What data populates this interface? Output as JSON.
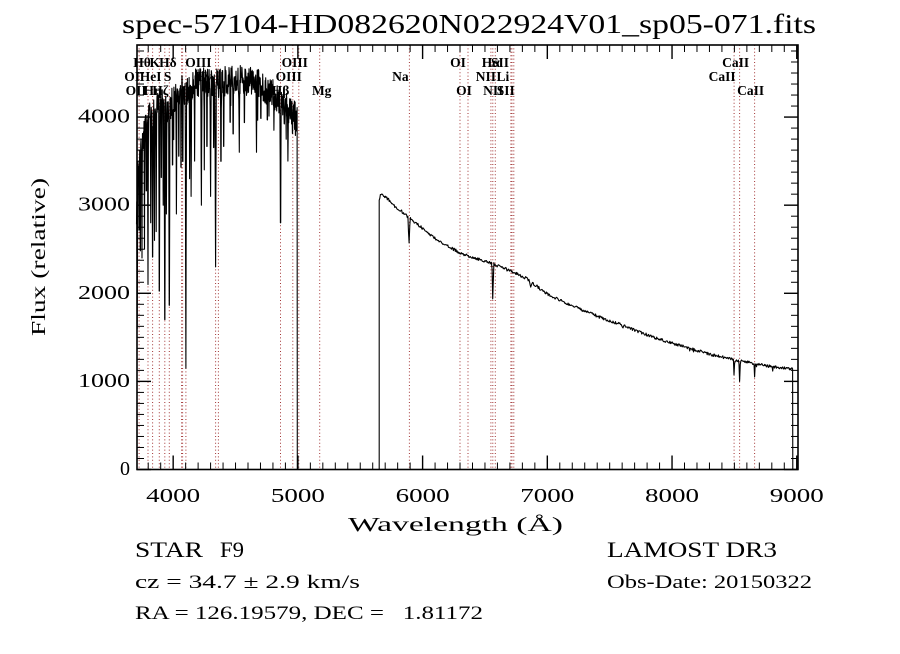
{
  "title": "spec-57104-HD082620N022924V01_sp05-071.fits",
  "annotations": {
    "class_label": "STAR",
    "subclass": "F9",
    "survey": "LAMOST DR3",
    "cz": "cz = 34.7 ± 2.9 km/s",
    "radec": "RA = 126.19579, DEC =   1.81172",
    "obs_date": "Obs-Date: 20150322"
  },
  "chart_data": {
    "type": "line",
    "title": "spec-57104-HD082620N022924V01_sp05-071.fits",
    "xlabel": "Wavelength (Å)",
    "ylabel": "Flux (relative)",
    "xlim": [
      3710,
      9010
    ],
    "ylim": [
      0,
      4818
    ],
    "grid": false,
    "x_major_ticks": [
      4000,
      5000,
      6000,
      7000,
      8000,
      9000
    ],
    "y_major_ticks": [
      0,
      1000,
      2000,
      3000,
      4000
    ],
    "x_minor_step": 100,
    "y_minor_step": 125,
    "line_marker_color": "#a23434",
    "line_markers": [
      3727,
      3798,
      3835,
      3889,
      3933,
      3969,
      4068,
      4076,
      4102,
      4340,
      4363,
      4861,
      4959,
      5007,
      5175,
      5894,
      6300,
      6364,
      6548,
      6563,
      6583,
      6708,
      6717,
      6731,
      8498,
      8542,
      8662
    ],
    "line_labels": [
      {
        "text": "Hθ",
        "row": 1,
        "lambda": 3798,
        "dx": -6
      },
      {
        "text": "K",
        "row": 1,
        "lambda": 3933,
        "dx": -10
      },
      {
        "text": "Hδ",
        "row": 1,
        "lambda": 4102,
        "dx": -18
      },
      {
        "text": "OIII",
        "row": 1,
        "lambda": 4363,
        "dx": -20
      },
      {
        "text": "OIII",
        "row": 1,
        "lambda": 5007,
        "dx": -4
      },
      {
        "text": "OI",
        "row": 1,
        "lambda": 6300,
        "dx": -2
      },
      {
        "text": "Hα",
        "row": 1,
        "lambda": 6563,
        "dx": -2
      },
      {
        "text": "SII",
        "row": 1,
        "lambda": 6717,
        "dx": -12
      },
      {
        "text": "CaII",
        "row": 1,
        "lambda": 8542,
        "dx": -4
      },
      {
        "text": "OI",
        "row": 2,
        "lambda": 3727,
        "dx": -7
      },
      {
        "text": "HeI",
        "row": 2,
        "lambda": 3835,
        "dx": -2
      },
      {
        "text": "S",
        "row": 2,
        "lambda": 4068,
        "dx": -14
      },
      {
        "text": "Hγ",
        "row": 2,
        "lambda": 4340,
        "dx": -12
      },
      {
        "text": "OIII",
        "row": 2,
        "lambda": 4959,
        "dx": -4
      },
      {
        "text": "Na",
        "row": 2,
        "lambda": 5894,
        "dx": -9
      },
      {
        "text": "NII",
        "row": 2,
        "lambda": 6548,
        "dx": -5
      },
      {
        "text": "Li",
        "row": 2,
        "lambda": 6708,
        "dx": -8
      },
      {
        "text": "CaII",
        "row": 2,
        "lambda": 8498,
        "dx": -12
      },
      {
        "text": "OII",
        "row": 3,
        "lambda": 3727,
        "dx": -3
      },
      {
        "text": "Hη",
        "row": 3,
        "lambda": 3835,
        "dx": 0
      },
      {
        "text": "Hζ",
        "row": 3,
        "lambda": 3889,
        "dx": 1
      },
      {
        "text": "Hβ",
        "row": 3,
        "lambda": 4861,
        "dx": 0
      },
      {
        "text": "Mg",
        "row": 3,
        "lambda": 5175,
        "dx": 2
      },
      {
        "text": "OI",
        "row": 3,
        "lambda": 6364,
        "dx": -4
      },
      {
        "text": "NII",
        "row": 3,
        "lambda": 6583,
        "dx": -2
      },
      {
        "text": "SII",
        "row": 3,
        "lambda": 6731,
        "dx": -8
      },
      {
        "text": "CaII",
        "row": 3,
        "lambda": 8662,
        "dx": -4
      }
    ],
    "spectrum": {
      "seed": 7,
      "segments": [
        {
          "type": "anchors",
          "from": 3706,
          "to": 4995,
          "step": 2,
          "noise": 170,
          "spike_prob": 0.05,
          "spike_mult": 1.8,
          "anchors": [
            [
              3706,
              2950
            ],
            [
              3715,
              3350
            ],
            [
              3726,
              3550
            ],
            [
              3740,
              3680
            ],
            [
              3756,
              3760
            ],
            [
              3775,
              3850
            ],
            [
              3800,
              3950
            ],
            [
              3830,
              4050
            ],
            [
              3870,
              4100
            ],
            [
              3910,
              4150
            ],
            [
              3950,
              4080
            ],
            [
              3990,
              4160
            ],
            [
              4030,
              4250
            ],
            [
              4070,
              4300
            ],
            [
              4110,
              4260
            ],
            [
              4150,
              4350
            ],
            [
              4200,
              4400
            ],
            [
              4260,
              4410
            ],
            [
              4320,
              4360
            ],
            [
              4380,
              4390
            ],
            [
              4440,
              4420
            ],
            [
              4500,
              4430
            ],
            [
              4560,
              4410
            ],
            [
              4620,
              4420
            ],
            [
              4680,
              4380
            ],
            [
              4740,
              4320
            ],
            [
              4800,
              4260
            ],
            [
              4850,
              4210
            ],
            [
              4900,
              4160
            ],
            [
              4940,
              4070
            ],
            [
              4975,
              4010
            ],
            [
              4995,
              3960
            ]
          ]
        },
        {
          "type": "flat",
          "from": 4995,
          "to": 5652,
          "flux": 0
        },
        {
          "type": "anchors",
          "from": 5652,
          "to": 8968,
          "step": 5,
          "noise": 16,
          "spike_prob": 0.03,
          "spike_mult": 1.5,
          "anchors": [
            [
              5652,
              3070
            ],
            [
              5668,
              3140
            ],
            [
              5690,
              3100
            ],
            [
              5720,
              3075
            ],
            [
              5750,
              3025
            ],
            [
              5780,
              2985
            ],
            [
              5820,
              2945
            ],
            [
              5860,
              2895
            ],
            [
              5900,
              2845
            ],
            [
              5950,
              2795
            ],
            [
              6000,
              2735
            ],
            [
              6060,
              2665
            ],
            [
              6120,
              2605
            ],
            [
              6180,
              2550
            ],
            [
              6240,
              2505
            ],
            [
              6300,
              2460
            ],
            [
              6360,
              2425
            ],
            [
              6420,
              2400
            ],
            [
              6480,
              2375
            ],
            [
              6530,
              2355
            ],
            [
              6600,
              2315
            ],
            [
              6660,
              2285
            ],
            [
              6720,
              2245
            ],
            [
              6780,
              2205
            ],
            [
              6840,
              2165
            ],
            [
              6880,
              2115
            ],
            [
              6930,
              2065
            ],
            [
              7000,
              1995
            ],
            [
              7060,
              1950
            ],
            [
              7120,
              1910
            ],
            [
              7180,
              1870
            ],
            [
              7240,
              1835
            ],
            [
              7300,
              1800
            ],
            [
              7360,
              1765
            ],
            [
              7420,
              1730
            ],
            [
              7480,
              1695
            ],
            [
              7540,
              1668
            ],
            [
              7600,
              1642
            ],
            [
              7660,
              1605
            ],
            [
              7720,
              1570
            ],
            [
              7780,
              1540
            ],
            [
              7840,
              1508
            ],
            [
              7900,
              1478
            ],
            [
              7960,
              1452
            ],
            [
              8020,
              1428
            ],
            [
              8080,
              1402
            ],
            [
              8140,
              1378
            ],
            [
              8200,
              1352
            ],
            [
              8260,
              1328
            ],
            [
              8320,
              1302
            ],
            [
              8380,
              1282
            ],
            [
              8440,
              1266
            ],
            [
              8500,
              1248
            ],
            [
              8560,
              1232
            ],
            [
              8620,
              1216
            ],
            [
              8680,
              1198
            ],
            [
              8740,
              1182
            ],
            [
              8800,
              1168
            ],
            [
              8850,
              1158
            ],
            [
              8900,
              1152
            ],
            [
              8940,
              1145
            ],
            [
              8968,
              1138
            ]
          ]
        },
        {
          "type": "flat",
          "from": 8968,
          "to": 9008,
          "flux": 0
        }
      ],
      "dips": [
        [
          3712,
          1600,
          4
        ],
        [
          3727,
          2300,
          3
        ],
        [
          3737,
          1900,
          3
        ],
        [
          3750,
          2400,
          3
        ],
        [
          3770,
          2500,
          3
        ],
        [
          3785,
          2800,
          3
        ],
        [
          3798,
          2100,
          4
        ],
        [
          3820,
          2800,
          3
        ],
        [
          3835,
          2000,
          5
        ],
        [
          3850,
          2600,
          4
        ],
        [
          3864,
          2700,
          3
        ],
        [
          3889,
          1500,
          5
        ],
        [
          3905,
          2900,
          3
        ],
        [
          3920,
          3000,
          3
        ],
        [
          3933,
          1100,
          5
        ],
        [
          3946,
          2900,
          3
        ],
        [
          3969,
          1300,
          5
        ],
        [
          3995,
          3100,
          3
        ],
        [
          4026,
          2900,
          4
        ],
        [
          4045,
          3200,
          3
        ],
        [
          4063,
          3000,
          3
        ],
        [
          4077,
          3100,
          3
        ],
        [
          4102,
          1150,
          5
        ],
        [
          4132,
          3300,
          3
        ],
        [
          4144,
          3100,
          4
        ],
        [
          4172,
          3500,
          3
        ],
        [
          4226,
          3000,
          5
        ],
        [
          4250,
          3400,
          3
        ],
        [
          4271,
          3300,
          3
        ],
        [
          4300,
          3100,
          5
        ],
        [
          4325,
          3300,
          3
        ],
        [
          4340,
          2300,
          6
        ],
        [
          4383,
          3200,
          4
        ],
        [
          4405,
          3300,
          3
        ],
        [
          4457,
          3700,
          3
        ],
        [
          4481,
          3500,
          3
        ],
        [
          4530,
          3600,
          4
        ],
        [
          4571,
          3700,
          3
        ],
        [
          4668,
          3600,
          4
        ],
        [
          4703,
          3800,
          3
        ],
        [
          4755,
          3800,
          3
        ],
        [
          4808,
          3850,
          3
        ],
        [
          4861,
          2450,
          5
        ],
        [
          4891,
          3800,
          3
        ],
        [
          4920,
          3500,
          4
        ],
        [
          4957,
          3700,
          3
        ],
        [
          5891,
          2530,
          8
        ],
        [
          6563,
          1870,
          7
        ],
        [
          6867,
          2070,
          12
        ],
        [
          7605,
          1595,
          7
        ],
        [
          8498,
          1030,
          5
        ],
        [
          8542,
          1000,
          6
        ],
        [
          8662,
          1050,
          5
        ],
        [
          8806,
          1100,
          4
        ]
      ]
    }
  }
}
